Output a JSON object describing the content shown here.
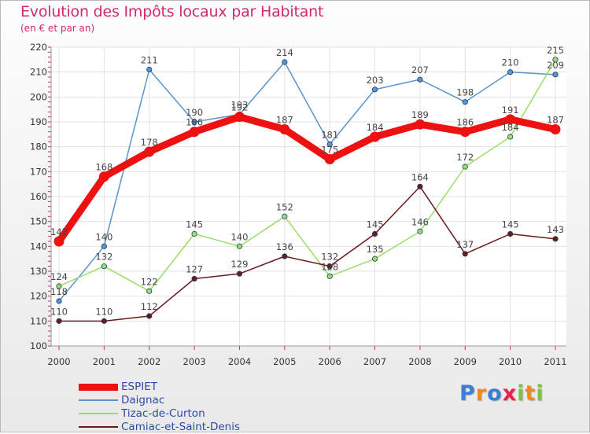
{
  "chart_data": {
    "type": "line",
    "title": "Evolution des Impôts locaux par Habitant",
    "subtitle": "(en € et par an)",
    "xlabel": "",
    "ylabel": "",
    "x": [
      "2000",
      "2001",
      "2002",
      "2003",
      "2004",
      "2005",
      "2006",
      "2007",
      "2008",
      "2009",
      "2010",
      "2011"
    ],
    "ylim": [
      100,
      220
    ],
    "yticks": [
      100,
      110,
      120,
      130,
      140,
      150,
      160,
      170,
      180,
      190,
      200,
      210,
      220
    ],
    "grid": true,
    "legend_position": "bottom-left",
    "series": [
      {
        "name": "ESPIET",
        "color": "#ee1111",
        "values": [
          142,
          168,
          178,
          186,
          192,
          187,
          175,
          184,
          189,
          186,
          191,
          187
        ]
      },
      {
        "name": "Daignac",
        "color": "#5b93cc",
        "values": [
          118,
          140,
          211,
          190,
          193,
          214,
          181,
          203,
          207,
          198,
          210,
          209
        ]
      },
      {
        "name": "Tizac-de-Curton",
        "color": "#99dd66",
        "values": [
          124,
          132,
          122,
          145,
          140,
          152,
          128,
          135,
          146,
          172,
          184,
          215
        ]
      },
      {
        "name": "Camiac-et-Saint-Denis",
        "color": "#6b1a1a",
        "values": [
          110,
          110,
          112,
          127,
          129,
          136,
          132,
          145,
          164,
          137,
          145,
          143
        ]
      }
    ]
  },
  "logo": {
    "letters": [
      "P",
      "r",
      "o",
      "x",
      "i",
      "t",
      "i"
    ],
    "colors": [
      "#3a7fd5",
      "#f08a1c",
      "#3a7fd5",
      "#e8204f",
      "#7fc241",
      "#f08a1c",
      "#7fc241"
    ]
  }
}
